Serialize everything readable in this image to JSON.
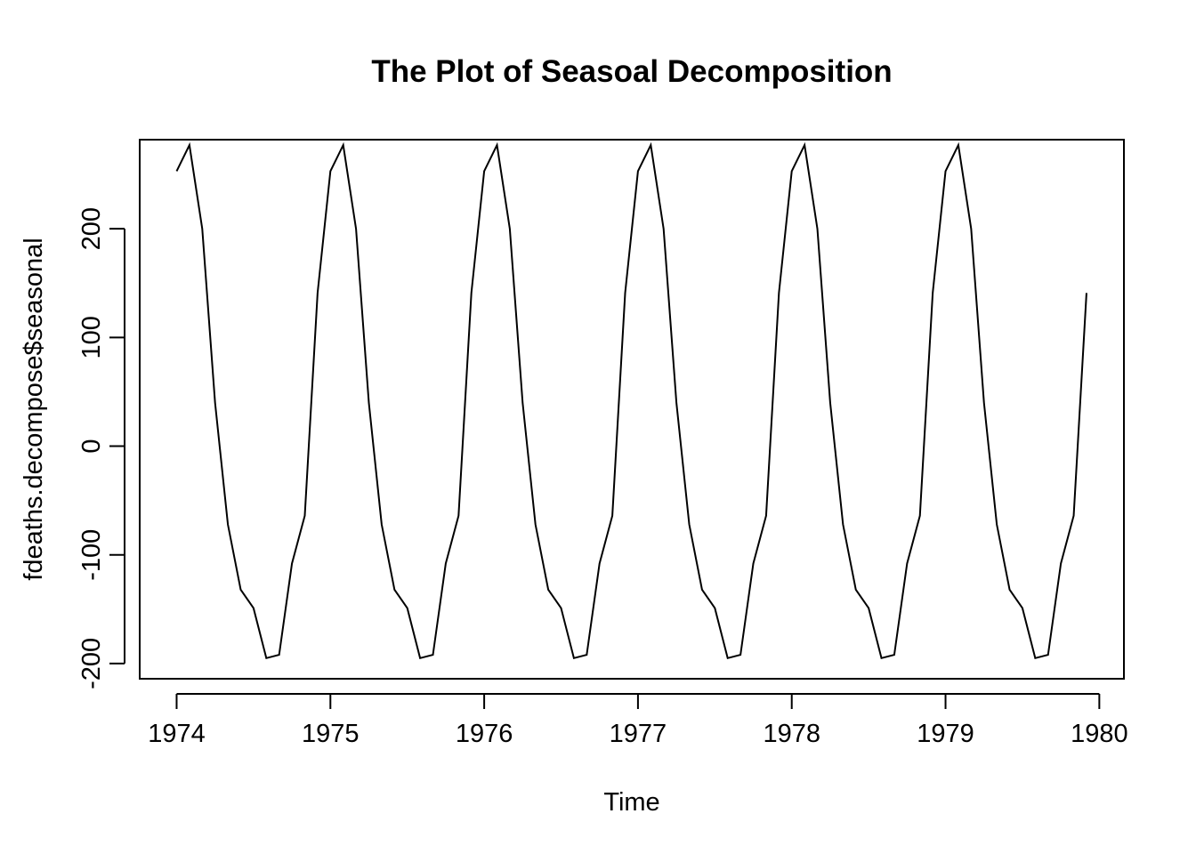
{
  "chart_data": {
    "type": "line",
    "title": "The Plot of Seasoal Decomposition",
    "xlabel": "Time",
    "ylabel": "fdeaths.decompose$seasonal",
    "x_start": 1974,
    "frequency": 12,
    "xlim": [
      1973.76,
      1980.16
    ],
    "ylim": [
      -214,
      282
    ],
    "x_ticks": [
      1974,
      1975,
      1976,
      1977,
      1978,
      1979,
      1980
    ],
    "x_tick_labels": [
      "1974",
      "1975",
      "1976",
      "1977",
      "1978",
      "1979",
      "1980"
    ],
    "y_ticks": [
      -200,
      -100,
      0,
      100,
      200
    ],
    "y_tick_labels": [
      "-200",
      "-100",
      "0",
      "100",
      "200"
    ],
    "grid": false,
    "legend": "none",
    "series": [
      {
        "values": [
          253,
          277,
          200,
          40,
          -72,
          -132,
          -149,
          -195,
          -192,
          -108,
          -64,
          141,
          253,
          277,
          200,
          40,
          -72,
          -132,
          -149,
          -195,
          -192,
          -108,
          -64,
          141,
          253,
          277,
          200,
          40,
          -72,
          -132,
          -149,
          -195,
          -192,
          -108,
          -64,
          141,
          253,
          277,
          200,
          40,
          -72,
          -132,
          -149,
          -195,
          -192,
          -108,
          -64,
          141,
          253,
          277,
          200,
          40,
          -72,
          -132,
          -149,
          -195,
          -192,
          -108,
          -64,
          141,
          253,
          277,
          200,
          40,
          -72,
          -132,
          -149,
          -195,
          -192,
          -108,
          -64,
          141
        ],
        "color": "#000000"
      }
    ]
  }
}
